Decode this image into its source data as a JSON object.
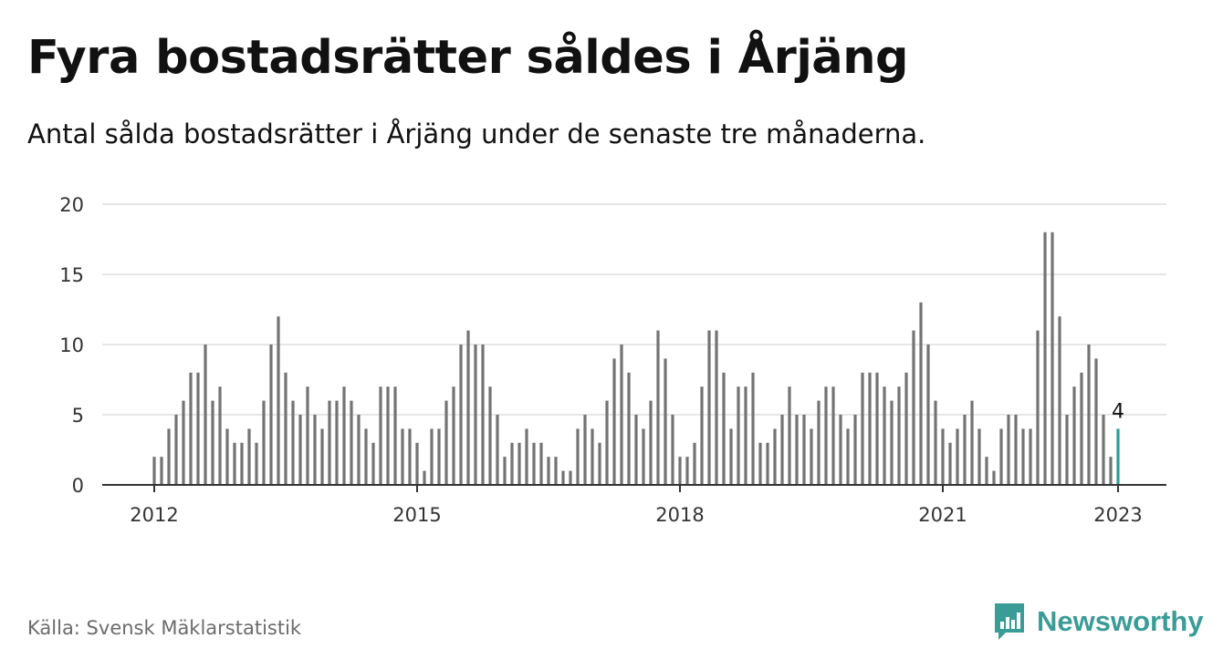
{
  "title": "Fyra bostadsrätter såldes i Årjäng",
  "subtitle": "Antal sålda bostadsrätter i Årjäng under de senaste tre månaderna.",
  "source": "Källa: Svensk Mäklarstatistik",
  "brand": {
    "name": "Newsworthy",
    "icon": "newsworthy-logo-icon",
    "color": "#3a9c97"
  },
  "colors": {
    "bar": "#737373",
    "highlight": "#2a9d98",
    "grid": "#dddddd",
    "axis": "#333333"
  },
  "chart_data": {
    "type": "bar",
    "title": "",
    "xlabel": "",
    "ylabel": "",
    "x_start": "2012-01",
    "x_end": "2023-01",
    "frequency": "monthly",
    "ylim": [
      0,
      20
    ],
    "yticks": [
      0,
      5,
      10,
      15,
      20
    ],
    "xticks": [
      "2012",
      "2015",
      "2018",
      "2021",
      "2023"
    ],
    "grid": true,
    "legend": "none",
    "highlight_last": true,
    "last_value_label": "4",
    "values": [
      2,
      2,
      4,
      5,
      6,
      8,
      8,
      10,
      6,
      7,
      4,
      3,
      3,
      4,
      3,
      6,
      10,
      12,
      8,
      6,
      5,
      7,
      5,
      4,
      6,
      6,
      7,
      6,
      5,
      4,
      3,
      7,
      7,
      7,
      4,
      4,
      3,
      1,
      4,
      4,
      6,
      7,
      10,
      11,
      10,
      10,
      7,
      5,
      2,
      3,
      3,
      4,
      3,
      3,
      2,
      2,
      1,
      1,
      4,
      5,
      4,
      3,
      6,
      9,
      10,
      8,
      5,
      4,
      6,
      11,
      9,
      5,
      2,
      2,
      3,
      7,
      11,
      11,
      8,
      4,
      7,
      7,
      8,
      3,
      3,
      4,
      5,
      7,
      5,
      5,
      4,
      6,
      7,
      7,
      5,
      4,
      5,
      8,
      8,
      8,
      7,
      6,
      7,
      8,
      11,
      13,
      10,
      6,
      4,
      3,
      4,
      5,
      6,
      4,
      2,
      1,
      4,
      5,
      5,
      4,
      4,
      11,
      18,
      18,
      12,
      5,
      7,
      8,
      10,
      9,
      5,
      2,
      4
    ]
  }
}
